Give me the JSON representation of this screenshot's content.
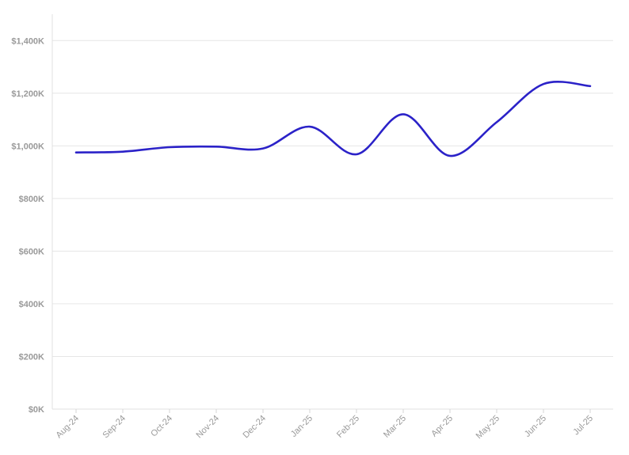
{
  "chart_data": {
    "type": "line",
    "title": "",
    "xlabel": "",
    "ylabel": "",
    "categories": [
      "Aug-24",
      "Sep-24",
      "Oct-24",
      "Nov-24",
      "Dec-24",
      "Jan-25",
      "Feb-25",
      "Mar-25",
      "Apr-25",
      "May-25",
      "Jun-25",
      "Jul-25"
    ],
    "series": [
      {
        "values": [
          975000,
          978000,
          995000,
          997000,
          990000,
          1073000,
          968000,
          1120000,
          962000,
          1090000,
          1235000,
          1227000
        ],
        "color": "#2b22c8"
      }
    ],
    "ylim": [
      0,
      1500000
    ],
    "yticks": [
      0,
      200000,
      400000,
      600000,
      800000,
      1000000,
      1200000,
      1400000
    ],
    "ytick_labels": [
      "$0K",
      "$200K",
      "$400K",
      "$600K",
      "$800K",
      "$1,000K",
      "$1,200K",
      "$1,400K"
    ],
    "grid": true,
    "legend": "none"
  }
}
